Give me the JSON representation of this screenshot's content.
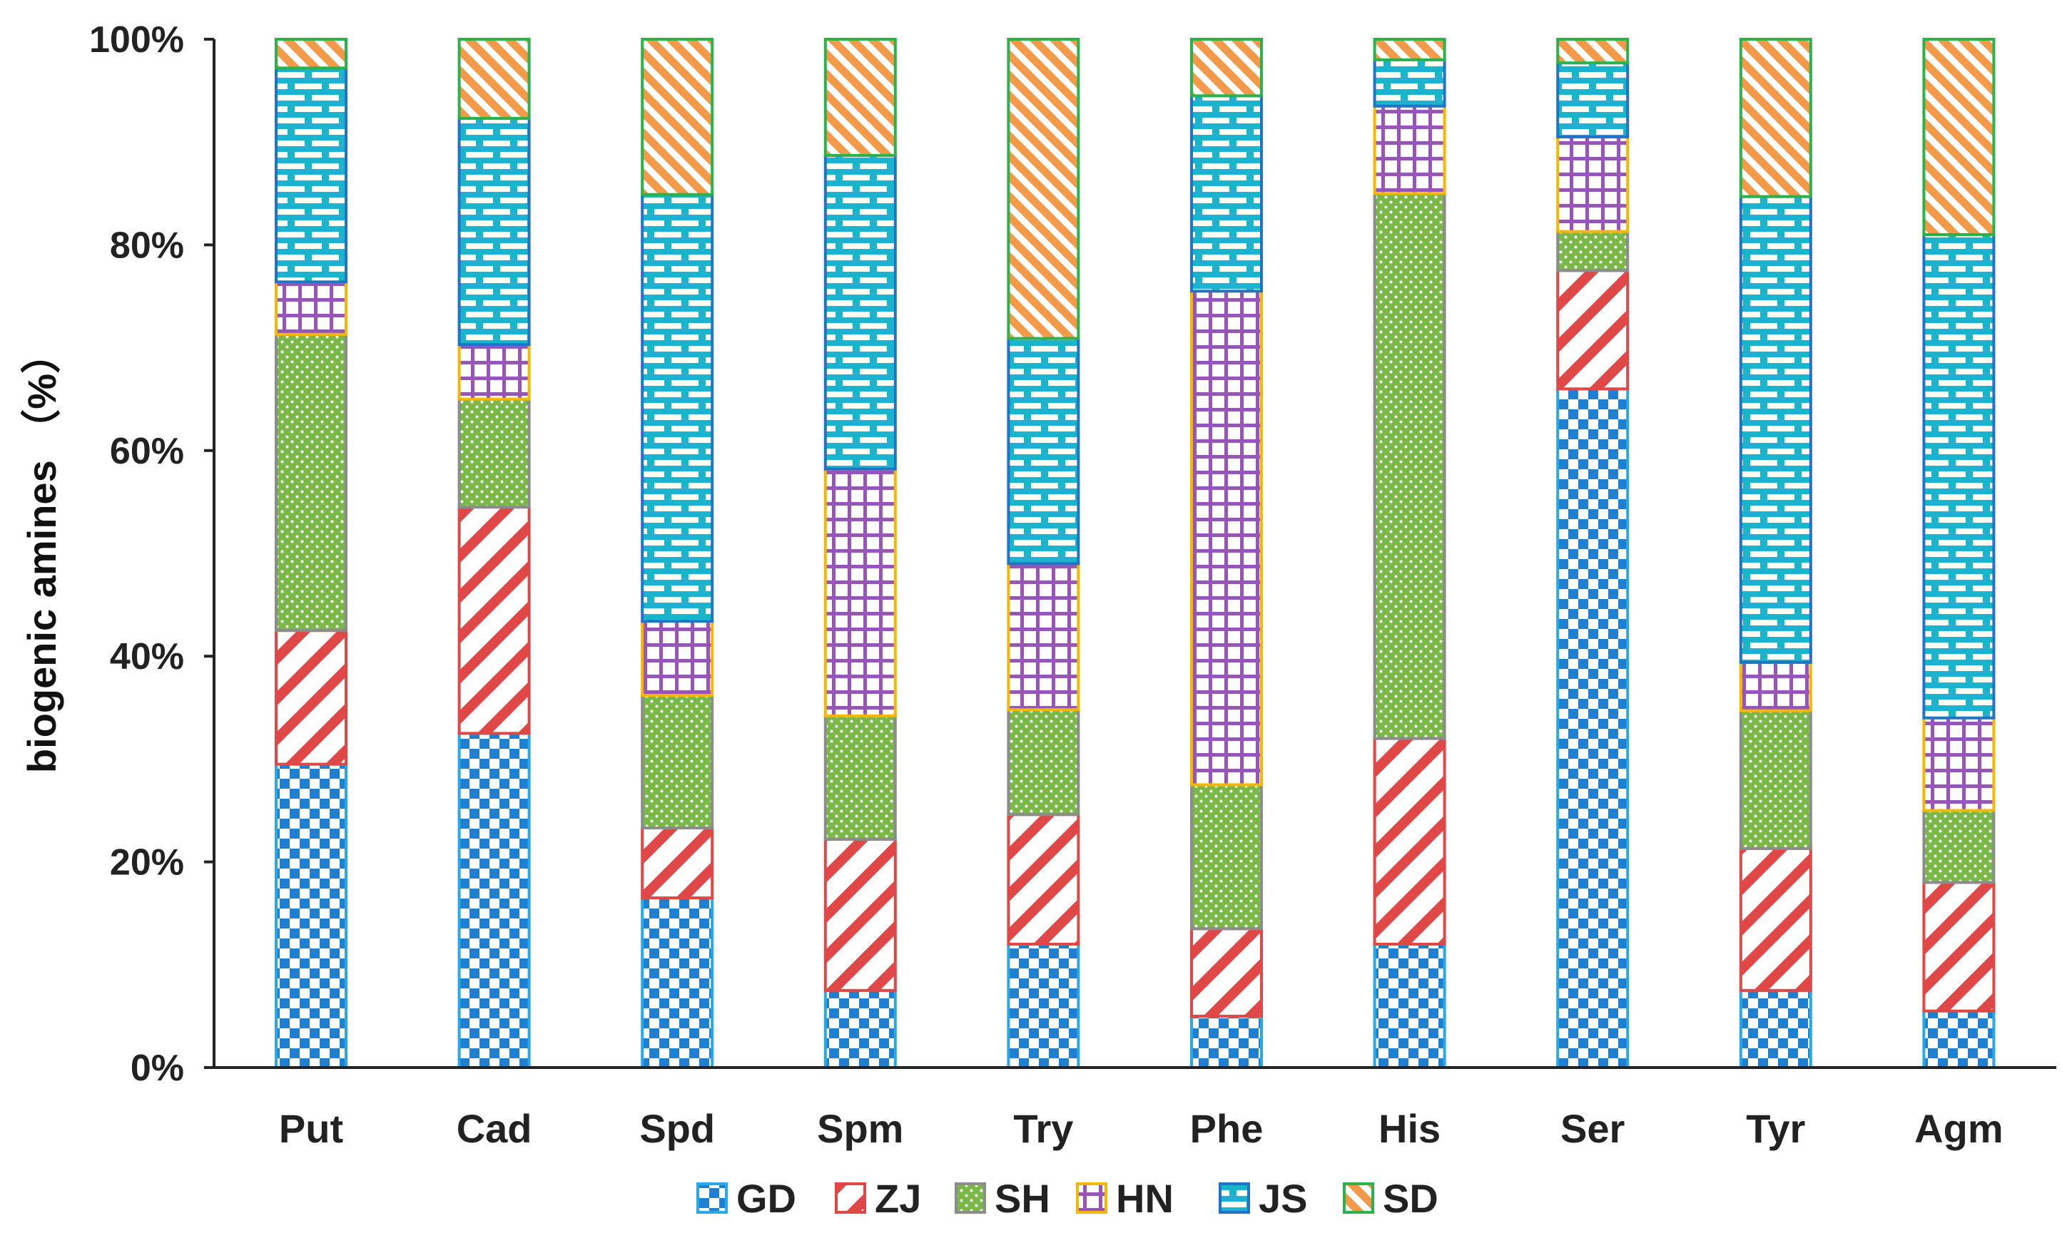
{
  "chart_data": {
    "type": "stacked-bar-100",
    "ylabel": "biogenic amines （%）",
    "xlabel": "",
    "ylim": [
      0,
      100
    ],
    "yticks": [
      "0%",
      "20%",
      "40%",
      "60%",
      "80%",
      "100%"
    ],
    "categories": [
      "Put",
      "Cad",
      "Spd",
      "Spm",
      "Try",
      "Phe",
      "His",
      "Ser",
      "Tyr",
      "Agm"
    ],
    "series": [
      {
        "name": "GD",
        "pattern": "checker",
        "color": "#1f8fd8",
        "edge": "#29a8e8",
        "values": [
          29.5,
          32.5,
          16.5,
          7.5,
          12,
          5,
          12,
          66,
          7.5,
          5.5
        ]
      },
      {
        "name": "ZJ",
        "pattern": "diagonal",
        "color": "#e04848",
        "edge": "#e04848",
        "values": [
          13,
          22,
          6.8,
          14.7,
          12.6,
          8.5,
          20,
          11.5,
          13.8,
          12.5
        ]
      },
      {
        "name": "SH",
        "pattern": "dots",
        "color": "#7ab848",
        "edge": "#8c8c8c",
        "values": [
          28.8,
          10.5,
          12.9,
          12,
          10.2,
          14,
          53,
          3.8,
          13.4,
          7
        ]
      },
      {
        "name": "HN",
        "pattern": "grid",
        "color": "#9855b8",
        "edge": "#f5b800",
        "values": [
          5.1,
          5.3,
          7.2,
          24,
          14.2,
          48,
          8.5,
          9.2,
          4.7,
          9
        ]
      },
      {
        "name": "JS",
        "pattern": "brick",
        "color": "#1cb4cc",
        "edge": "#1f74c8",
        "values": [
          20.8,
          22,
          41.5,
          30.5,
          21.9,
          19,
          4.5,
          7.2,
          45.3,
          47
        ]
      },
      {
        "name": "SD",
        "pattern": "orange-diagonal",
        "color": "#f39a4a",
        "edge": "#2cb24a",
        "values": [
          2.8,
          7.7,
          15.1,
          11.3,
          29.1,
          5.5,
          2,
          2.3,
          15.3,
          19
        ]
      }
    ]
  }
}
